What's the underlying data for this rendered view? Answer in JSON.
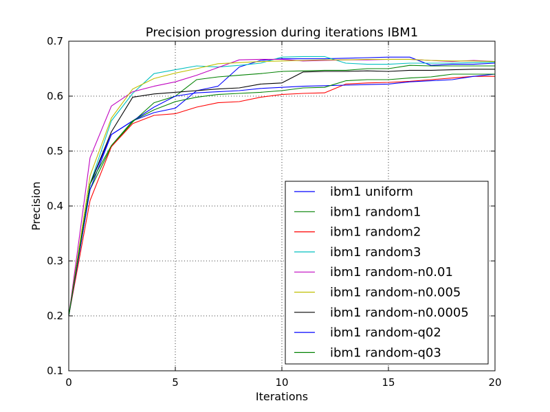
{
  "chart_data": {
    "type": "line",
    "title": "Precision progression during iterations IBM1",
    "xlabel": "Iterations",
    "ylabel": "Precision",
    "xlim": [
      0,
      20
    ],
    "ylim": [
      0.1,
      0.7
    ],
    "xticks": [
      0,
      5,
      10,
      15,
      20
    ],
    "xtick_labels": [
      "0",
      "5",
      "10",
      "15",
      "20"
    ],
    "yticks": [
      0.1,
      0.2,
      0.3,
      0.4,
      0.5,
      0.6,
      0.7
    ],
    "ytick_labels": [
      "0.1",
      "0.2",
      "0.3",
      "0.4",
      "0.5",
      "0.6",
      "0.7"
    ],
    "grid": true,
    "legend_position": "lower-right",
    "x": [
      0,
      1,
      2,
      3,
      4,
      5,
      6,
      7,
      8,
      9,
      10,
      11,
      12,
      13,
      14,
      15,
      16,
      17,
      18,
      19,
      20
    ],
    "series": [
      {
        "name": "ibm1 uniform",
        "color": "#0000ff",
        "values": [
          0.2,
          0.44,
          0.53,
          0.555,
          0.57,
          0.578,
          0.61,
          0.618,
          0.653,
          0.665,
          0.668,
          0.668,
          0.668,
          0.669,
          0.67,
          0.671,
          0.671,
          0.656,
          0.658,
          0.658,
          0.66
        ]
      },
      {
        "name": "ibm1 random1",
        "color": "#008000",
        "values": [
          0.2,
          0.43,
          0.508,
          0.553,
          0.588,
          0.6,
          0.63,
          0.635,
          0.638,
          0.641,
          0.645,
          0.646,
          0.647,
          0.647,
          0.65,
          0.65,
          0.656,
          0.655,
          0.655,
          0.655,
          0.655
        ]
      },
      {
        "name": "ibm1 random2",
        "color": "#ff0000",
        "values": [
          0.2,
          0.41,
          0.508,
          0.55,
          0.565,
          0.568,
          0.58,
          0.588,
          0.59,
          0.598,
          0.603,
          0.605,
          0.606,
          0.622,
          0.624,
          0.625,
          0.627,
          0.63,
          0.633,
          0.636,
          0.636
        ]
      },
      {
        "name": "ibm1 random3",
        "color": "#00bfbf",
        "values": [
          0.2,
          0.44,
          0.555,
          0.605,
          0.641,
          0.648,
          0.655,
          0.653,
          0.656,
          0.66,
          0.671,
          0.672,
          0.672,
          0.66,
          0.658,
          0.658,
          0.66,
          0.66,
          0.66,
          0.661,
          0.662
        ]
      },
      {
        "name": "ibm1 random-n0.01",
        "color": "#bf00bf",
        "values": [
          0.2,
          0.488,
          0.582,
          0.608,
          0.618,
          0.626,
          0.638,
          0.652,
          0.666,
          0.667,
          0.667,
          0.664,
          0.665,
          0.666,
          0.666,
          0.667,
          0.667,
          0.665,
          0.663,
          0.665,
          0.663
        ]
      },
      {
        "name": "ibm1 random-n0.005",
        "color": "#bfbf00",
        "values": [
          0.2,
          0.455,
          0.56,
          0.613,
          0.632,
          0.642,
          0.65,
          0.659,
          0.661,
          0.663,
          0.664,
          0.665,
          0.666,
          0.666,
          0.667,
          0.667,
          0.667,
          0.665,
          0.664,
          0.664,
          0.663
        ]
      },
      {
        "name": "ibm1 random-n0.0005",
        "color": "#000000",
        "values": [
          0.2,
          0.44,
          0.535,
          0.598,
          0.604,
          0.607,
          0.61,
          0.613,
          0.615,
          0.622,
          0.624,
          0.644,
          0.645,
          0.645,
          0.646,
          0.645,
          0.647,
          0.647,
          0.648,
          0.649,
          0.649
        ]
      },
      {
        "name": "ibm1 random-q02",
        "color": "#0000ff",
        "values": [
          0.2,
          0.43,
          0.53,
          0.555,
          0.58,
          0.6,
          0.606,
          0.608,
          0.61,
          0.614,
          0.616,
          0.618,
          0.619,
          0.62,
          0.621,
          0.622,
          0.626,
          0.628,
          0.63,
          0.636,
          0.64
        ]
      },
      {
        "name": "ibm1 random-q03",
        "color": "#008000",
        "values": [
          0.2,
          0.44,
          0.51,
          0.555,
          0.575,
          0.59,
          0.598,
          0.603,
          0.605,
          0.607,
          0.61,
          0.615,
          0.616,
          0.628,
          0.63,
          0.63,
          0.633,
          0.635,
          0.64,
          0.64,
          0.64
        ]
      }
    ]
  }
}
